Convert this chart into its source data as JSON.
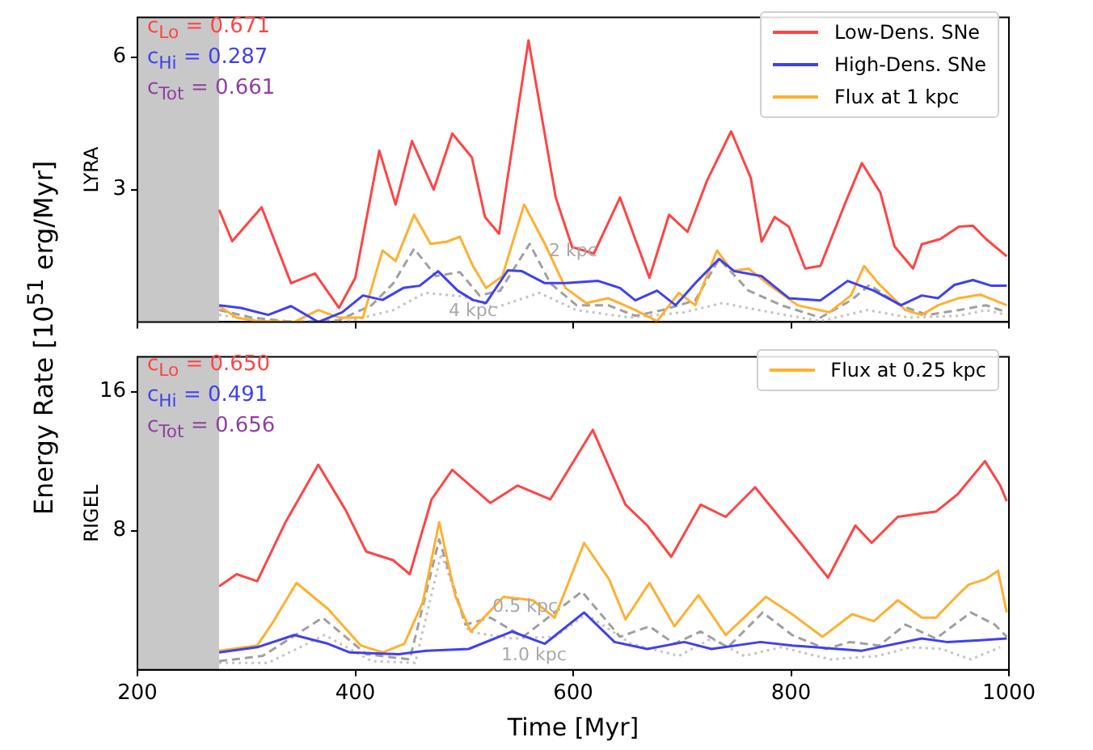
{
  "chart_data": [
    {
      "type": "line",
      "ylabel": "LYRA",
      "xlim": [
        200,
        1000
      ],
      "xticks": [
        200,
        400,
        600,
        800,
        1000
      ],
      "ylim": [
        0,
        6.9
      ],
      "yticks": [
        3,
        6
      ],
      "tick_labels": "y",
      "legend": "top right",
      "bands": [
        {
          "axis": "x",
          "from": 200,
          "to": 275,
          "color": "#c8c8c8"
        }
      ],
      "annotations": [
        "c$_{Lo}$ = 0.671",
        "c$_{Hi}$ = 0.287",
        "c$_{Tot}$ = 0.661",
        "2 kpc",
        "4 kpc"
      ],
      "series": [
        {
          "name": "Low-Dens. SNe",
          "color": "#ff4444",
          "x": [
            275,
            287,
            314,
            341,
            363,
            385,
            400,
            422,
            437,
            452,
            472,
            489,
            507,
            519,
            532,
            559,
            584,
            599,
            619,
            643,
            670,
            688,
            705,
            723,
            745,
            763,
            773,
            785,
            798,
            813,
            827,
            850,
            865,
            882,
            895,
            912,
            920,
            937,
            954,
            967,
            979,
            998
          ],
          "values": [
            2.54,
            1.83,
            2.6,
            0.88,
            1.1,
            0.32,
            1.0,
            3.88,
            2.66,
            4.1,
            3.0,
            4.27,
            3.73,
            2.38,
            2.0,
            6.38,
            2.82,
            1.7,
            1.55,
            2.82,
            1.0,
            2.43,
            2.04,
            3.21,
            4.32,
            3.27,
            1.82,
            2.38,
            2.16,
            1.21,
            1.27,
            2.71,
            3.6,
            2.93,
            1.71,
            1.21,
            1.76,
            1.88,
            2.16,
            2.18,
            1.88,
            1.49
          ]
        },
        {
          "name": "High-Dens. SNe",
          "color": "#4040f0",
          "x": [
            275,
            295,
            320,
            341,
            366,
            388,
            407,
            425,
            444,
            459,
            476,
            494,
            508,
            520,
            540,
            553,
            574,
            593,
            623,
            643,
            657,
            677,
            694,
            714,
            734,
            748,
            773,
            798,
            827,
            852,
            876,
            901,
            920,
            935,
            950,
            967,
            984,
            998
          ],
          "values": [
            0.38,
            0.32,
            0.16,
            0.36,
            0.0,
            0.22,
            0.6,
            0.5,
            0.77,
            0.82,
            1.15,
            0.71,
            0.5,
            0.43,
            1.17,
            1.15,
            0.88,
            0.88,
            0.93,
            0.77,
            0.49,
            0.71,
            0.38,
            0.93,
            1.43,
            1.15,
            1.04,
            0.54,
            0.49,
            0.93,
            0.71,
            0.38,
            0.6,
            0.54,
            0.84,
            0.95,
            0.82,
            0.82
          ]
        },
        {
          "name": "Flux at 1 kpc",
          "color": "#ffb030",
          "x": [
            275,
            291,
            310,
            344,
            366,
            385,
            407,
            425,
            437,
            454,
            469,
            484,
            496,
            508,
            520,
            535,
            555,
            574,
            593,
            612,
            632,
            657,
            677,
            697,
            712,
            732,
            746,
            761,
            781,
            806,
            835,
            855,
            867,
            880,
            905,
            920,
            935,
            954,
            974,
            998
          ],
          "values": [
            0.36,
            0.1,
            0.02,
            0.0,
            0.27,
            0.1,
            0.1,
            1.62,
            1.38,
            2.43,
            1.77,
            1.82,
            1.93,
            1.27,
            0.77,
            1.04,
            2.66,
            1.77,
            0.77,
            0.43,
            0.54,
            0.27,
            0.02,
            0.66,
            0.38,
            1.62,
            1.15,
            1.21,
            0.82,
            0.38,
            0.22,
            0.6,
            1.27,
            0.88,
            0.27,
            0.16,
            0.38,
            0.54,
            0.62,
            0.38
          ]
        },
        {
          "color": "#a0a0a0",
          "line_style": "dashed",
          "x": [
            275,
            305,
            344,
            385,
            415,
            435,
            454,
            474,
            496,
            514,
            533,
            560,
            579,
            603,
            632,
            657,
            682,
            712,
            734,
            761,
            791,
            827,
            855,
            872,
            900,
            925,
            954,
            979,
            998
          ],
          "values": [
            0.27,
            0.1,
            0.0,
            0.04,
            0.38,
            0.88,
            1.66,
            1.04,
            1.13,
            0.6,
            0.71,
            1.77,
            0.88,
            0.38,
            0.38,
            0.14,
            0.27,
            0.49,
            1.43,
            0.71,
            0.38,
            0.1,
            0.49,
            0.84,
            0.38,
            0.16,
            0.27,
            0.38,
            0.22
          ]
        },
        {
          "color": "#c4c4c4",
          "line_style": "dotted",
          "x": [
            275,
            315,
            390,
            435,
            464,
            499,
            528,
            569,
            603,
            652,
            702,
            737,
            781,
            827,
            870,
            909,
            954,
            979,
            998
          ],
          "values": [
            0.16,
            0.02,
            0.0,
            0.27,
            0.66,
            0.58,
            0.32,
            0.66,
            0.27,
            0.1,
            0.22,
            0.43,
            0.22,
            0.02,
            0.27,
            0.1,
            0.14,
            0.27,
            0.16
          ]
        }
      ]
    },
    {
      "type": "line",
      "ylabel": "RIGEL",
      "xlabel": "Time [Myr]",
      "xlim": [
        200,
        1000
      ],
      "xticks": [
        200,
        400,
        600,
        800,
        1000
      ],
      "ylim": [
        0,
        18
      ],
      "yticks": [
        8,
        16
      ],
      "legend": "top right",
      "bands": [
        {
          "axis": "x",
          "from": 200,
          "to": 275,
          "color": "#c8c8c8"
        }
      ],
      "annotations": [
        "c$_{Lo}$ = 0.650",
        "c$_{Hi}$ = 0.491",
        "c$_{Tot}$ = 0.656",
        "0.5 kpc",
        "1.0 kpc",
        "Energy Rate [10$^{51}$ erg/Myr]"
      ],
      "series": [
        {
          "color": "#ff4444",
          "x": [
            275,
            291,
            310,
            336,
            366,
            391,
            410,
            435,
            450,
            470,
            489,
            524,
            549,
            579,
            618,
            648,
            668,
            690,
            717,
            740,
            767,
            806,
            834,
            859,
            874,
            898,
            920,
            933,
            953,
            978,
            992,
            998
          ],
          "values": [
            4.8,
            5.5,
            5.1,
            8.5,
            11.8,
            9.2,
            6.8,
            6.3,
            5.5,
            9.8,
            11.5,
            9.6,
            10.6,
            9.8,
            13.8,
            9.5,
            8.3,
            6.5,
            9.5,
            8.8,
            10.5,
            7.5,
            5.3,
            8.3,
            7.3,
            8.8,
            9.0,
            9.1,
            10.1,
            12.0,
            10.6,
            9.7
          ]
        },
        {
          "color": "#4040f0",
          "x": [
            275,
            310,
            344,
            375,
            395,
            440,
            465,
            504,
            544,
            574,
            610,
            638,
            668,
            702,
            727,
            772,
            801,
            865,
            920,
            943,
            973,
            998
          ],
          "values": [
            1.0,
            1.3,
            2.0,
            1.5,
            1.0,
            0.9,
            1.1,
            1.2,
            2.2,
            1.5,
            3.3,
            1.6,
            1.2,
            1.6,
            1.2,
            1.6,
            1.4,
            1.1,
            1.8,
            1.6,
            1.7,
            1.8
          ]
        },
        {
          "name": "Flux at 0.25 kpc",
          "color": "#ffb030",
          "x": [
            275,
            310,
            325,
            346,
            375,
            405,
            425,
            445,
            462,
            477,
            492,
            506,
            536,
            563,
            583,
            610,
            633,
            648,
            670,
            693,
            715,
            740,
            777,
            801,
            829,
            856,
            876,
            898,
            920,
            933,
            953,
            963,
            978,
            990,
            998
          ],
          "values": [
            1.1,
            1.4,
            2.8,
            5.0,
            3.5,
            1.4,
            1.0,
            1.5,
            3.9,
            8.5,
            4.2,
            2.2,
            4.2,
            4.0,
            3.0,
            7.3,
            5.2,
            2.9,
            5.0,
            2.5,
            4.3,
            2.0,
            4.2,
            3.2,
            1.9,
            3.2,
            2.8,
            4.0,
            3.0,
            3.0,
            4.3,
            4.9,
            5.2,
            5.7,
            3.3
          ]
        },
        {
          "color": "#a0a0a0",
          "line_style": "dashed",
          "x": [
            275,
            315,
            370,
            410,
            450,
            477,
            501,
            524,
            554,
            608,
            643,
            670,
            693,
            717,
            742,
            774,
            801,
            832,
            854,
            881,
            905,
            933,
            965,
            987,
            998
          ],
          "values": [
            0.5,
            0.8,
            3.0,
            0.9,
            0.6,
            7.5,
            2.6,
            3.0,
            1.9,
            4.5,
            1.9,
            2.5,
            1.5,
            2.2,
            1.3,
            3.3,
            2.0,
            1.2,
            1.6,
            1.4,
            2.6,
            1.8,
            3.3,
            2.6,
            1.9
          ]
        },
        {
          "color": "#c4c4c4",
          "line_style": "dotted",
          "x": [
            275,
            320,
            372,
            415,
            455,
            479,
            504,
            544,
            583,
            612,
            653,
            697,
            727,
            757,
            791,
            836,
            880,
            910,
            938,
            965,
            992
          ],
          "values": [
            0.4,
            0.4,
            2.0,
            0.5,
            0.4,
            6.7,
            2.2,
            1.8,
            1.9,
            3.2,
            1.5,
            0.8,
            1.8,
            0.8,
            1.3,
            0.6,
            0.8,
            1.3,
            1.2,
            0.6,
            1.3
          ]
        }
      ]
    }
  ]
}
